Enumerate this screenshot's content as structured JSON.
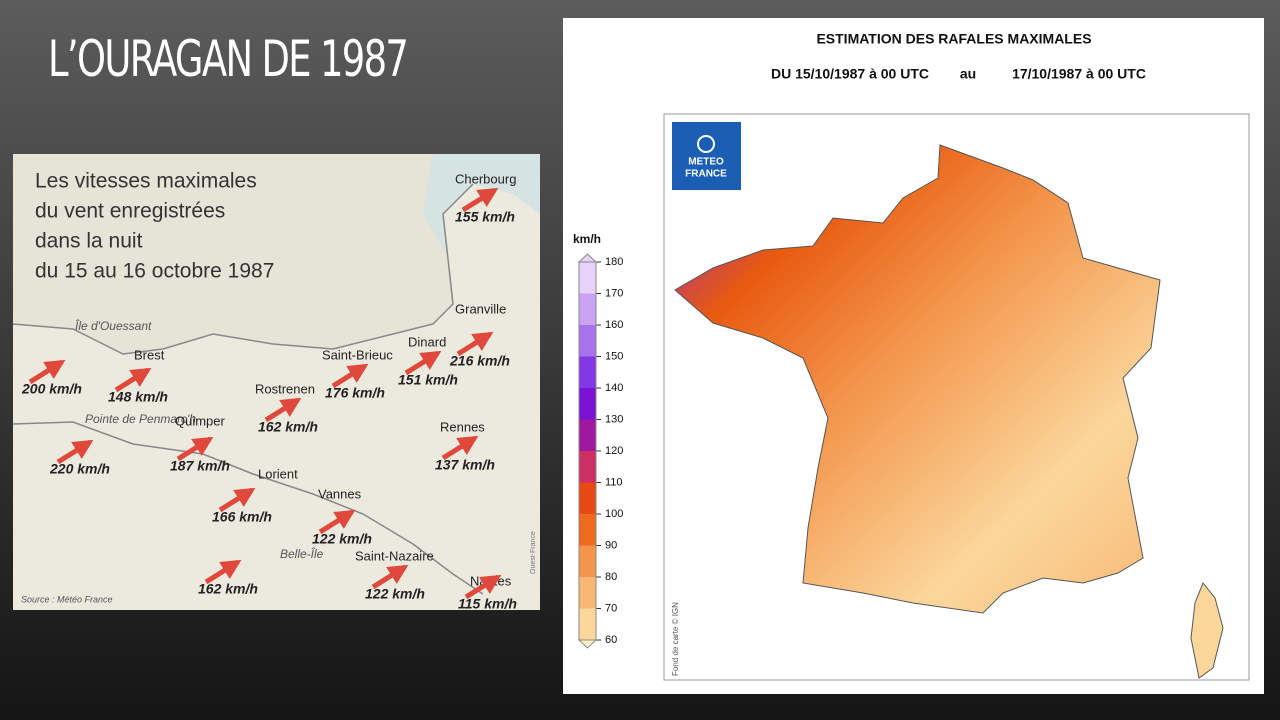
{
  "title": "L’OURAGAN DE 1987",
  "newspaper_map": {
    "heading": [
      "Les vitesses maximales",
      "du vent enregistrées",
      "dans la nuit",
      "du 15 au 16 octobre 1987"
    ],
    "places": [
      {
        "name": "Cherbourg",
        "speed": "155 km/h"
      },
      {
        "name": "Granville",
        "speed": "216 km/h"
      },
      {
        "name": "Dinard",
        "speed": "151 km/h"
      },
      {
        "name": "Saint-Brieuc",
        "speed": "176 km/h"
      },
      {
        "name": "Brest",
        "speed": "148 km/h"
      },
      {
        "name": "Île d'Ouessant",
        "speed": "200 km/h"
      },
      {
        "name": "Rostrenen",
        "speed": "162 km/h"
      },
      {
        "name": "Pointe de Penmarc'h",
        "speed": "220 km/h"
      },
      {
        "name": "Quimper",
        "speed": "187 km/h"
      },
      {
        "name": "Rennes",
        "speed": "137 km/h"
      },
      {
        "name": "Lorient",
        "speed": "166 km/h"
      },
      {
        "name": "Vannes",
        "speed": "122 km/h"
      },
      {
        "name": "Belle-Île",
        "speed": "162 km/h"
      },
      {
        "name": "Saint-Nazaire",
        "speed": "122 km/h"
      },
      {
        "name": "Nantes",
        "speed": "115 km/h"
      }
    ],
    "source": "Source : Météo France",
    "credit": "Ouest-France"
  },
  "meteo_map": {
    "title": "ESTIMATION DES RAFALES MAXIMALES",
    "period": [
      "DU 15/10/1987 à 00 UTC",
      "au",
      "17/10/1987 à 00 UTC"
    ],
    "logo": [
      "METEO",
      "FRANCE"
    ],
    "legend": {
      "unit": "km/h",
      "ticks": [
        180,
        170,
        160,
        150,
        140,
        130,
        120,
        110,
        100,
        90,
        80,
        70,
        60
      ],
      "colors": [
        "#e6d2fa",
        "#caa4f2",
        "#a872ea",
        "#8338e6",
        "#7a12d6",
        "#a0189e",
        "#cc2f63",
        "#e64a12",
        "#ee6a1c",
        "#f3964c",
        "#f7b874",
        "#fbd79c",
        "#fff2c4"
      ]
    },
    "credit": "Fond de carte © IGN"
  }
}
